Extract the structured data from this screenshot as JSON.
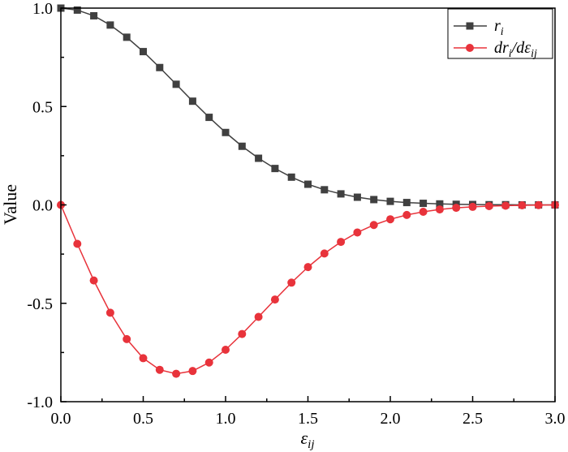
{
  "chart_data": {
    "type": "line",
    "xlabel": "εij",
    "ylabel": "Value",
    "xlim": [
      0,
      3.0
    ],
    "ylim": [
      -1.0,
      1.0
    ],
    "x_ticks": [
      "0.0",
      "0.5",
      "1.0",
      "1.5",
      "2.0",
      "2.5",
      "3.0"
    ],
    "y_ticks": [
      "-1.0",
      "-0.5",
      "0.0",
      "0.5",
      "1.0"
    ],
    "grid": false,
    "legend_position": "top-right",
    "x": [
      0.0,
      0.1,
      0.2,
      0.3,
      0.4,
      0.5,
      0.6,
      0.7,
      0.8,
      0.9,
      1.0,
      1.1,
      1.2,
      1.3,
      1.4,
      1.5,
      1.6,
      1.7,
      1.8,
      1.9,
      2.0,
      2.1,
      2.2,
      2.3,
      2.4,
      2.5,
      2.6,
      2.7,
      2.8,
      2.9,
      3.0
    ],
    "series": [
      {
        "name": "ri",
        "color": "#404040",
        "marker": "square",
        "values": [
          1.0,
          0.99,
          0.961,
          0.914,
          0.852,
          0.779,
          0.698,
          0.613,
          0.527,
          0.445,
          0.368,
          0.298,
          0.237,
          0.185,
          0.141,
          0.105,
          0.077,
          0.056,
          0.039,
          0.027,
          0.018,
          0.012,
          0.008,
          0.005,
          0.003,
          0.002,
          0.001,
          0.001,
          0.0,
          0.0,
          0.0
        ]
      },
      {
        "name": "dri/dεij",
        "color": "#e8333b",
        "marker": "circle",
        "values": [
          0.0,
          -0.198,
          -0.384,
          -0.548,
          -0.682,
          -0.779,
          -0.838,
          -0.858,
          -0.844,
          -0.801,
          -0.736,
          -0.656,
          -0.569,
          -0.481,
          -0.395,
          -0.316,
          -0.247,
          -0.188,
          -0.14,
          -0.102,
          -0.073,
          -0.051,
          -0.035,
          -0.023,
          -0.015,
          -0.01,
          -0.006,
          -0.004,
          -0.002,
          -0.001,
          0.0
        ]
      }
    ]
  }
}
